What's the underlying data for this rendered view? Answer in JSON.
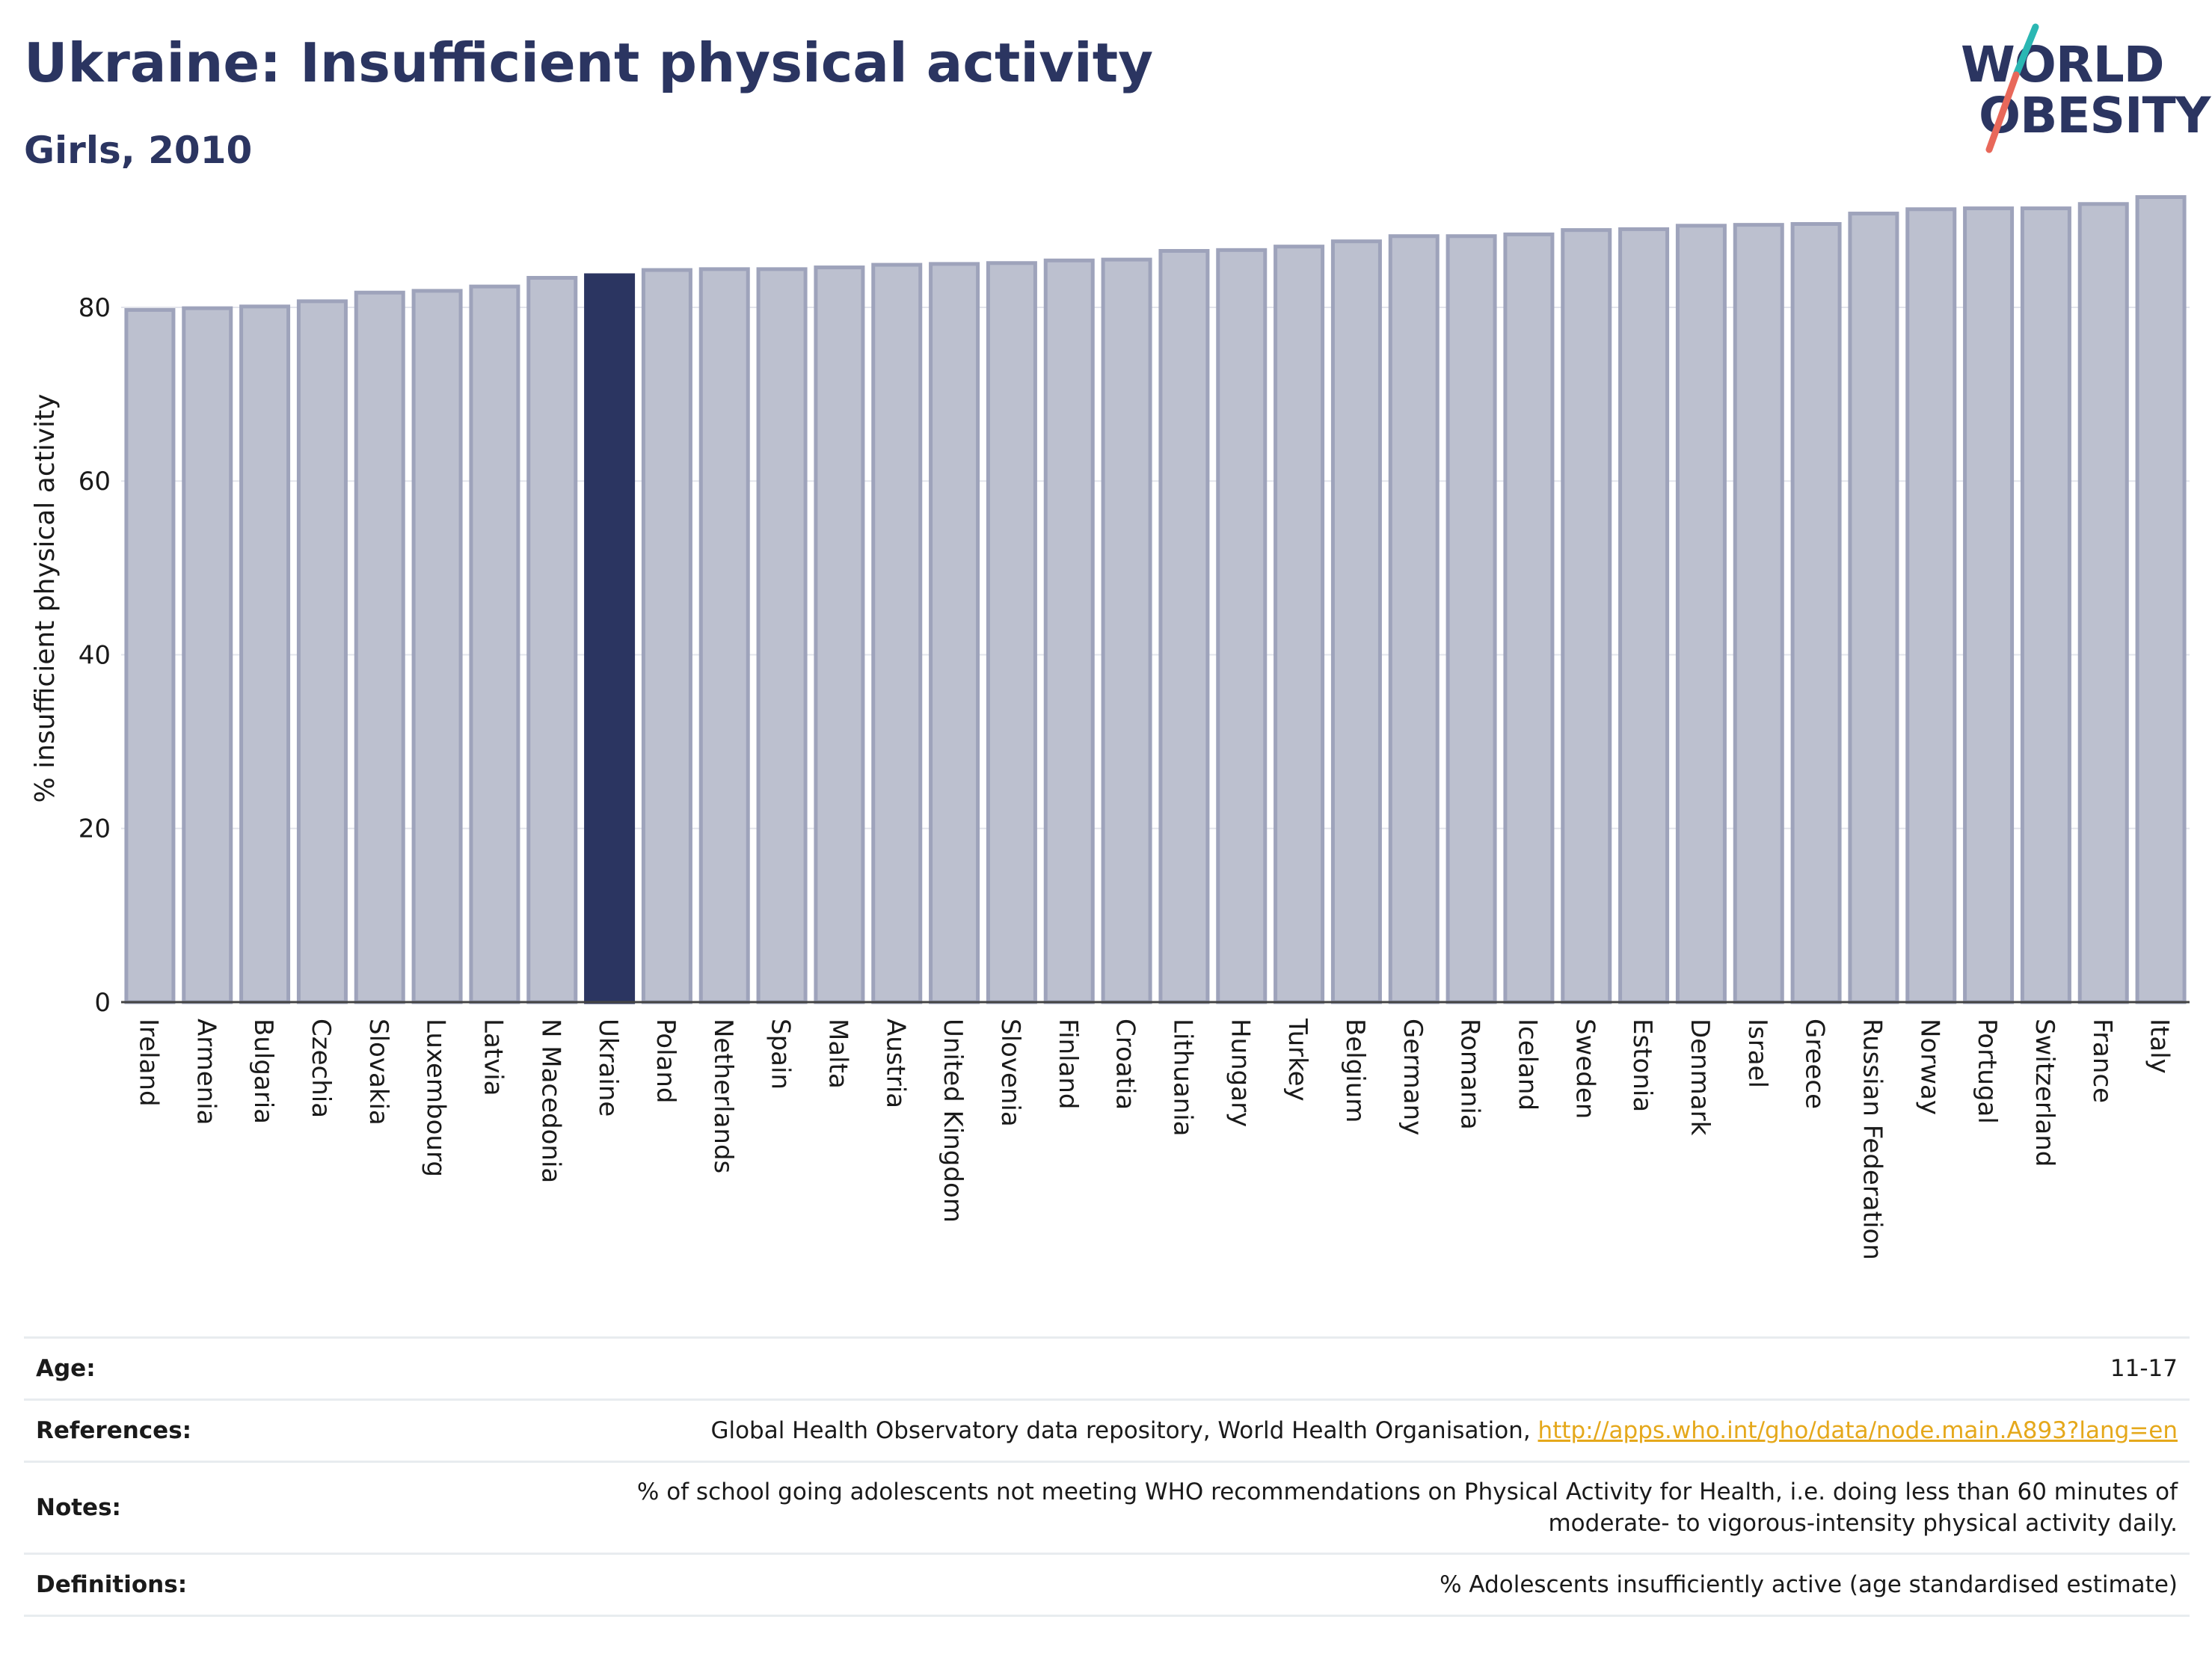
{
  "header": {
    "title": "Ukraine: Insufficient physical activity",
    "subtitle": "Girls, 2010"
  },
  "logo": {
    "line1": "WORLD",
    "line2": "OBESITY",
    "colors": {
      "text": "#2b3561",
      "slash_top": "#2bb7b3",
      "slash_bottom": "#e8685a"
    }
  },
  "chart_data": {
    "type": "bar",
    "title": "",
    "xlabel": "",
    "ylabel": "% insufficient physical activity",
    "ylim": [
      0,
      93
    ],
    "yticks": [
      0,
      20,
      40,
      60,
      80
    ],
    "grid": "horizontal",
    "highlight": "Ukraine",
    "colors": {
      "bar": "#bcc0cf",
      "bar_edge": "#9ea3bb",
      "highlight": "#2b3561"
    },
    "categories": [
      "Ireland",
      "Armenia",
      "Bulgaria",
      "Czechia",
      "Slovakia",
      "Luxembourg",
      "Latvia",
      "N Macedonia",
      "Ukraine",
      "Poland",
      "Netherlands",
      "Spain",
      "Malta",
      "Austria",
      "United Kingdom",
      "Slovenia",
      "Finland",
      "Croatia",
      "Lithuania",
      "Hungary",
      "Turkey",
      "Belgium",
      "Germany",
      "Romania",
      "Iceland",
      "Sweden",
      "Estonia",
      "Denmark",
      "Israel",
      "Greece",
      "Russian Federation",
      "Norway",
      "Portugal",
      "Switzerland",
      "France",
      "Italy"
    ],
    "values": [
      79.7,
      79.9,
      80.1,
      80.7,
      81.7,
      81.9,
      82.4,
      83.4,
      83.7,
      84.3,
      84.4,
      84.4,
      84.6,
      84.9,
      85.0,
      85.1,
      85.4,
      85.5,
      86.5,
      86.6,
      87.0,
      87.6,
      88.2,
      88.2,
      88.4,
      88.9,
      89.0,
      89.4,
      89.5,
      89.6,
      90.8,
      91.3,
      91.4,
      91.4,
      91.9,
      92.7
    ]
  },
  "info": {
    "age_label": "Age:",
    "age_value": "11-17",
    "references_label": "References:",
    "references_text": "Global Health Observatory data repository, World Health Organisation, ",
    "references_link": "http://apps.who.int/gho/data/node.main.A893?lang=en",
    "notes_label": "Notes:",
    "notes_line1": "% of school going adolescents not meeting WHO recommendations on Physical Activity for Health, i.e. doing less than 60 minutes of",
    "notes_line2": "moderate- to vigorous-intensity physical activity daily.",
    "definitions_label": "Definitions:",
    "definitions_value": "% Adolescents insufficiently active (age standardised estimate)"
  }
}
